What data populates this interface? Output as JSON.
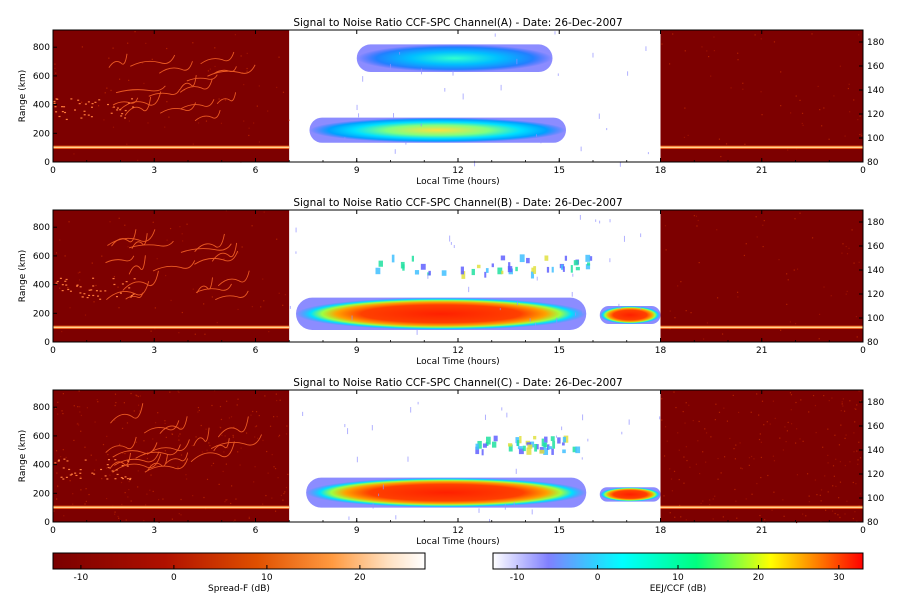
{
  "chart_data": {
    "type": "heatmap",
    "panels": [
      {
        "title": "Signal to Noise Ratio CCF-SPC Channel(A) - Date: 26-Dec-2007",
        "xlabel": "Local Time (hours)",
        "ylabel": "Range (km)",
        "x_ticks": [
          "0",
          "3",
          "6",
          "9",
          "12",
          "15",
          "18",
          "21",
          "0"
        ],
        "xlim": [
          0,
          24
        ],
        "y_ticks": [
          "0",
          "200",
          "400",
          "600",
          "800"
        ],
        "ylim": [
          0,
          920
        ],
        "y2_ticks": [
          "80",
          "100",
          "120",
          "140",
          "160",
          "180"
        ],
        "y2lim": [
          80,
          190
        ],
        "spread_f_intervals_hours": [
          [
            0,
            7
          ],
          [
            18,
            24
          ]
        ],
        "eej_ccf_interval_hours": [
          7,
          18
        ],
        "features": [
          {
            "region": "ccf",
            "kind": "echo",
            "time": [
              9,
              14.8
            ],
            "range2": [
              155,
              178
            ],
            "peak_db": 10
          },
          {
            "region": "ccf",
            "kind": "echo",
            "time": [
              7.6,
              15.2
            ],
            "range2": [
              96,
              117
            ],
            "peak_db": 15
          },
          {
            "region": "spread_f",
            "kind": "plume",
            "time": [
              1.5,
              5
            ],
            "range": [
              280,
              700
            ],
            "peak_db": 12
          },
          {
            "region": "spread_f",
            "kind": "layer",
            "time": [
              0,
              7
            ],
            "range": [
              95,
              110
            ],
            "peak_db": 20
          },
          {
            "region": "spread_f",
            "kind": "layer",
            "time": [
              18,
              24
            ],
            "range": [
              95,
              110
            ],
            "peak_db": 20
          }
        ]
      },
      {
        "title": "Signal to Noise Ratio CCF-SPC Channel(B) - Date: 26-Dec-2007",
        "xlabel": "Local Time (hours)",
        "ylabel": "Range (km)",
        "x_ticks": [
          "0",
          "3",
          "6",
          "9",
          "12",
          "15",
          "18",
          "21",
          "0"
        ],
        "xlim": [
          0,
          24
        ],
        "y_ticks": [
          "0",
          "200",
          "400",
          "600",
          "800"
        ],
        "ylim": [
          0,
          920
        ],
        "y2_ticks": [
          "80",
          "100",
          "120",
          "140",
          "160",
          "180"
        ],
        "y2lim": [
          80,
          190
        ],
        "spread_f_intervals_hours": [
          [
            0,
            7
          ],
          [
            18,
            24
          ]
        ],
        "eej_ccf_interval_hours": [
          7,
          18
        ],
        "features": [
          {
            "region": "ccf",
            "kind": "echo",
            "time": [
              7.2,
              15.8
            ],
            "range2": [
              90,
              117
            ],
            "peak_db": 32
          },
          {
            "region": "ccf",
            "kind": "echo",
            "time": [
              16.2,
              18
            ],
            "range2": [
              95,
              110
            ],
            "peak_db": 28
          },
          {
            "region": "ccf",
            "kind": "patches",
            "time": [
              9.5,
              16.5
            ],
            "range2": [
              138,
              154
            ],
            "peak_db": 12
          },
          {
            "region": "spread_f",
            "kind": "plume",
            "time": [
              1.5,
              5
            ],
            "range": [
              280,
              700
            ],
            "peak_db": 12
          },
          {
            "region": "spread_f",
            "kind": "layer",
            "time": [
              0,
              7
            ],
            "range": [
              95,
              110
            ],
            "peak_db": 20
          },
          {
            "region": "spread_f",
            "kind": "layer",
            "time": [
              18,
              24
            ],
            "range": [
              95,
              110
            ],
            "peak_db": 20
          }
        ]
      },
      {
        "title": "Signal to Noise Ratio CCF-SPC Channel(C) - Date: 26-Dec-2007",
        "xlabel": "Local Time (hours)",
        "ylabel": "Range (km)",
        "x_ticks": [
          "0",
          "3",
          "6",
          "9",
          "12",
          "15",
          "18",
          "21",
          "0"
        ],
        "xlim": [
          0,
          24
        ],
        "y_ticks": [
          "0",
          "200",
          "400",
          "600",
          "800"
        ],
        "ylim": [
          0,
          920
        ],
        "y2_ticks": [
          "80",
          "100",
          "120",
          "140",
          "160",
          "180"
        ],
        "y2lim": [
          80,
          190
        ],
        "spread_f_intervals_hours": [
          [
            0,
            7
          ],
          [
            18,
            24
          ]
        ],
        "eej_ccf_interval_hours": [
          7,
          18
        ],
        "features": [
          {
            "region": "ccf",
            "kind": "echo",
            "time": [
              7.5,
              15.8
            ],
            "range2": [
              92,
              117
            ],
            "peak_db": 32
          },
          {
            "region": "ccf",
            "kind": "echo",
            "time": [
              16.2,
              18
            ],
            "range2": [
              97,
              109
            ],
            "peak_db": 25
          },
          {
            "region": "ccf",
            "kind": "patches",
            "time": [
              12.5,
              15.5
            ],
            "range2": [
              140,
              152
            ],
            "peak_db": 12
          },
          {
            "region": "spread_f",
            "kind": "plume",
            "time": [
              1.5,
              5
            ],
            "range": [
              280,
              700
            ],
            "peak_db": 12
          },
          {
            "region": "spread_f",
            "kind": "layer",
            "time": [
              0,
              7
            ],
            "range": [
              95,
              110
            ],
            "peak_db": 20
          },
          {
            "region": "spread_f",
            "kind": "layer",
            "time": [
              18,
              24
            ],
            "range": [
              95,
              110
            ],
            "peak_db": 20
          }
        ]
      }
    ],
    "colorbars": [
      {
        "label": "Spread-F (dB)",
        "ticks": [
          "-10",
          "0",
          "10",
          "20"
        ],
        "range": [
          -13,
          27
        ],
        "colors": [
          "#7a0000",
          "#b01000",
          "#e05000",
          "#ff9a40",
          "#ffe0c0",
          "#ffffff"
        ]
      },
      {
        "label": "EEJ/CCF (dB)",
        "ticks": [
          "-10",
          "0",
          "10",
          "20",
          "30"
        ],
        "range": [
          -13,
          33
        ],
        "colors": [
          "#ffffff",
          "#8080ff",
          "#00ffff",
          "#00ff80",
          "#ffff00",
          "#ff0000"
        ]
      }
    ]
  }
}
